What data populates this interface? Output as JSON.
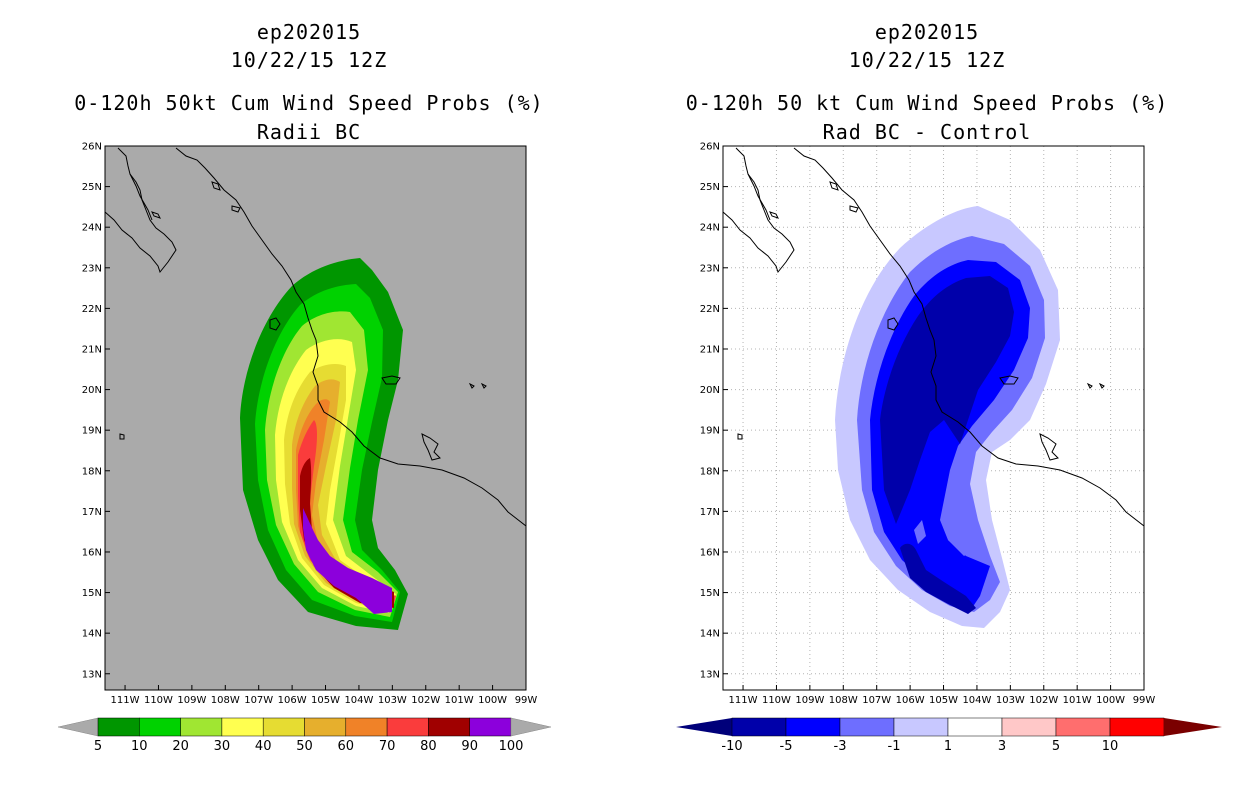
{
  "left_panel": {
    "title_line1": "ep202015",
    "title_line2": "10/22/15 12Z",
    "title_line3": "0-120h 50kt Cum Wind Speed Probs (%)",
    "title_line4": "Radii BC",
    "background_color": "#aaaaaa",
    "legend_levels": [
      "5",
      "10",
      "20",
      "30",
      "40",
      "50",
      "60",
      "70",
      "80",
      "90",
      "100"
    ],
    "legend_colors": [
      "#009600",
      "#00d200",
      "#a0e632",
      "#ffff50",
      "#e6dc32",
      "#e6af2d",
      "#f08228",
      "#fa3c3c",
      "#a00000",
      "#8c00dc"
    ],
    "legend_end_color": "#aaaaaa"
  },
  "right_panel": {
    "title_line1": "ep202015",
    "title_line2": "10/22/15 12Z",
    "title_line3": "0-120h 50 kt Cum Wind Speed Probs (%)",
    "title_line4": "Rad BC - Control",
    "background_color": "#ffffff",
    "legend_levels": [
      "-10",
      "-5",
      "-3",
      "-1",
      "1",
      "3",
      "5",
      "10"
    ],
    "legend_colors": [
      "#0000aa",
      "#0000ff",
      "#6e6eff",
      "#c8c8ff",
      "#ffffff",
      "#ffc8c8",
      "#ff6e6e",
      "#ff0000"
    ],
    "legend_low_color": "#00007a",
    "legend_high_color": "#7a0000"
  },
  "axes": {
    "lat_labels": [
      "26N",
      "25N",
      "24N",
      "23N",
      "22N",
      "21N",
      "20N",
      "19N",
      "18N",
      "17N",
      "16N",
      "15N",
      "14N",
      "13N"
    ],
    "lon_labels": [
      "111W",
      "110W",
      "109W",
      "108W",
      "107W",
      "106W",
      "105W",
      "104W",
      "103W",
      "102W",
      "101W",
      "100W",
      "99W"
    ],
    "lat_range": [
      12.6,
      26.0
    ],
    "lon_range": [
      -111.6,
      -99.0
    ]
  }
}
